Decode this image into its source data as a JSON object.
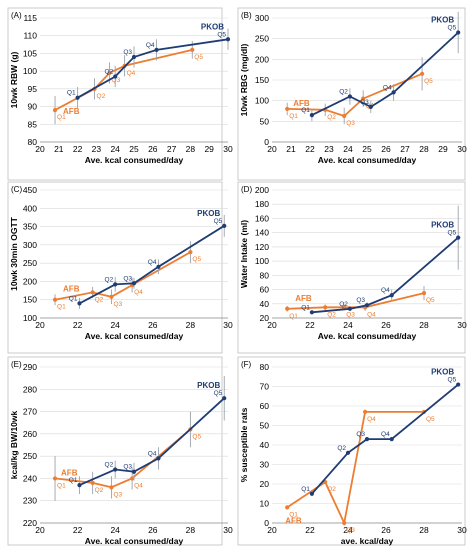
{
  "colors": {
    "pkob": "#1f3c73",
    "afb": "#ed7d31",
    "errorbar": "#9aa3ad",
    "grid": "#d9d9d9",
    "axis": "#000000"
  },
  "series_names": [
    "AFB",
    "PKOB"
  ],
  "chart_data": [
    {
      "panel": "(A)",
      "type": "line",
      "xlabel": "Ave. kcal consumed/day",
      "ylabel": "10wk RBW (g)",
      "xlim": [
        20,
        30
      ],
      "ylim": [
        80,
        115
      ],
      "xticks": [
        20,
        21,
        22,
        23,
        24,
        25,
        26,
        27,
        28,
        29,
        30
      ],
      "yticks": [
        80,
        85,
        90,
        95,
        100,
        105,
        110,
        115
      ],
      "series": [
        {
          "name": "AFB",
          "label_pos": "start-left",
          "points": [
            {
              "x": 20.8,
              "y": 89,
              "label": "Q1",
              "err": 4
            },
            {
              "x": 22.9,
              "y": 95,
              "label": "Q2",
              "err": 3
            },
            {
              "x": 23.7,
              "y": 99.5,
              "label": "Q3",
              "err": 3
            },
            {
              "x": 24.5,
              "y": 101.5,
              "label": "Q4",
              "err": 3
            },
            {
              "x": 28.1,
              "y": 106,
              "label": "Q5",
              "err": 2.5
            }
          ]
        },
        {
          "name": "PKOB",
          "label_pos": "end-left",
          "points": [
            {
              "x": 22.0,
              "y": 92.5,
              "label": "Q1",
              "err": 3
            },
            {
              "x": 24.0,
              "y": 98.5,
              "label": "Q2",
              "err": 3
            },
            {
              "x": 25.0,
              "y": 104,
              "label": "Q3",
              "err": 3
            },
            {
              "x": 26.2,
              "y": 106,
              "label": "Q4",
              "err": 3
            },
            {
              "x": 30.0,
              "y": 109,
              "label": "Q5",
              "err": 3
            }
          ]
        }
      ]
    },
    {
      "panel": "(B)",
      "type": "line",
      "xlabel": "Ave. kcal consumed/day",
      "ylabel": "10wk RBG (mg/dl)",
      "xlim": [
        20,
        30
      ],
      "ylim": [
        0,
        300
      ],
      "xticks": [
        20,
        21,
        22,
        23,
        24,
        25,
        26,
        27,
        28,
        29,
        30
      ],
      "yticks": [
        0,
        50,
        100,
        150,
        200,
        250,
        300
      ],
      "series": [
        {
          "name": "AFB",
          "label_pos": "start-right",
          "points": [
            {
              "x": 20.8,
              "y": 80,
              "label": "Q1",
              "err": 15
            },
            {
              "x": 22.8,
              "y": 78,
              "label": "Q2",
              "err": 15
            },
            {
              "x": 23.8,
              "y": 63,
              "label": "Q3",
              "err": 20
            },
            {
              "x": 24.8,
              "y": 105,
              "label": "Q4",
              "err": 20
            },
            {
              "x": 27.9,
              "y": 165,
              "label": "Q5",
              "err": 40
            }
          ]
        },
        {
          "name": "PKOB",
          "label_pos": "end-left",
          "points": [
            {
              "x": 22.1,
              "y": 65,
              "label": "Q1",
              "err": 15
            },
            {
              "x": 24.1,
              "y": 110,
              "label": "Q2",
              "err": 20
            },
            {
              "x": 25.2,
              "y": 85,
              "label": "Q3",
              "err": 15
            },
            {
              "x": 26.4,
              "y": 120,
              "label": "Q4",
              "err": 20
            },
            {
              "x": 29.8,
              "y": 265,
              "label": "Q5",
              "err": 50
            }
          ]
        }
      ]
    },
    {
      "panel": "(C)",
      "type": "line",
      "xlabel": "Ave. kcal consumed/day",
      "ylabel": "10wk 30min OGTT",
      "xlim": [
        20,
        30
      ],
      "ylim": [
        100,
        450
      ],
      "xticks": [
        20,
        22,
        24,
        26,
        28,
        30
      ],
      "yticks": [
        100,
        150,
        200,
        250,
        300,
        350,
        400,
        450
      ],
      "series": [
        {
          "name": "AFB",
          "label_pos": "start-above",
          "points": [
            {
              "x": 20.8,
              "y": 150,
              "label": "Q1",
              "err": 15
            },
            {
              "x": 22.8,
              "y": 170,
              "label": "Q2",
              "err": 15
            },
            {
              "x": 23.8,
              "y": 158,
              "label": "Q3",
              "err": 20
            },
            {
              "x": 24.9,
              "y": 190,
              "label": "Q4",
              "err": 20
            },
            {
              "x": 28.0,
              "y": 280,
              "label": "Q5",
              "err": 30
            }
          ]
        },
        {
          "name": "PKOB",
          "label_pos": "end-left",
          "points": [
            {
              "x": 22.1,
              "y": 140,
              "label": "Q1",
              "err": 15
            },
            {
              "x": 24.0,
              "y": 192,
              "label": "Q2",
              "err": 20
            },
            {
              "x": 25.0,
              "y": 195,
              "label": "Q3",
              "err": 15
            },
            {
              "x": 26.3,
              "y": 240,
              "label": "Q4",
              "err": 20
            },
            {
              "x": 29.8,
              "y": 352,
              "label": "Q5",
              "err": 30
            }
          ]
        }
      ]
    },
    {
      "panel": "(D)",
      "type": "line",
      "xlabel": "Ave. kcal consumed/day",
      "ylabel": "Water Intake (ml)",
      "xlim": [
        20,
        30
      ],
      "ylim": [
        20,
        200
      ],
      "xticks": [
        20,
        22,
        24,
        26,
        28,
        30
      ],
      "yticks": [
        20,
        40,
        60,
        80,
        100,
        120,
        140,
        160,
        180,
        200
      ],
      "series": [
        {
          "name": "AFB",
          "label_pos": "start-above",
          "points": [
            {
              "x": 20.8,
              "y": 33,
              "label": "Q1",
              "err": 4
            },
            {
              "x": 22.8,
              "y": 35,
              "label": "Q2",
              "err": 4
            },
            {
              "x": 23.8,
              "y": 35,
              "label": "Q3",
              "err": 4
            },
            {
              "x": 24.9,
              "y": 35,
              "label": "Q4",
              "err": 5
            },
            {
              "x": 28.0,
              "y": 55,
              "label": "Q5",
              "err": 10
            }
          ]
        },
        {
          "name": "PKOB",
          "label_pos": "end-left",
          "points": [
            {
              "x": 22.1,
              "y": 28,
              "label": "Q1",
              "err": 3
            },
            {
              "x": 24.1,
              "y": 33,
              "label": "Q2",
              "err": 3
            },
            {
              "x": 25.0,
              "y": 38,
              "label": "Q3",
              "err": 4
            },
            {
              "x": 26.3,
              "y": 52,
              "label": "Q4",
              "err": 8
            },
            {
              "x": 29.8,
              "y": 133,
              "label": "Q5",
              "err": 45
            }
          ]
        }
      ]
    },
    {
      "panel": "(E)",
      "type": "line",
      "xlabel": "Ave. kcal consumed/day",
      "ylabel": "kcal/kg BW/10wk",
      "xlim": [
        20,
        30
      ],
      "ylim": [
        220,
        290
      ],
      "xticks": [
        20,
        22,
        24,
        26,
        28,
        30
      ],
      "yticks": [
        220,
        230,
        240,
        250,
        260,
        270,
        280,
        290
      ],
      "series": [
        {
          "name": "AFB",
          "label_pos": "start-right",
          "points": [
            {
              "x": 20.8,
              "y": 240,
              "label": "Q1",
              "err": 10
            },
            {
              "x": 22.8,
              "y": 238,
              "label": "Q2",
              "err": 5
            },
            {
              "x": 23.8,
              "y": 236,
              "label": "Q3",
              "err": 5
            },
            {
              "x": 24.9,
              "y": 240,
              "label": "Q4",
              "err": 5
            },
            {
              "x": 28.0,
              "y": 262,
              "label": "Q5",
              "err": 8
            }
          ]
        },
        {
          "name": "PKOB",
          "label_pos": "end-left",
          "points": [
            {
              "x": 22.1,
              "y": 237,
              "label": "Q1",
              "err": 4
            },
            {
              "x": 24.0,
              "y": 244,
              "label": "Q2",
              "err": 4
            },
            {
              "x": 25.0,
              "y": 243,
              "label": "Q3",
              "err": 4
            },
            {
              "x": 26.3,
              "y": 249,
              "label": "Q4",
              "err": 5
            },
            {
              "x": 29.8,
              "y": 276,
              "label": "Q5",
              "err": 10
            }
          ]
        }
      ]
    },
    {
      "panel": "(F)",
      "type": "line",
      "xlabel": "ave. kcal/day",
      "ylabel": "% susceptible rats",
      "xlim": [
        20,
        30
      ],
      "ylim": [
        0,
        80
      ],
      "xticks": [
        20,
        22,
        24,
        26,
        28,
        30
      ],
      "yticks": [
        0,
        10,
        20,
        30,
        40,
        50,
        60,
        70,
        80
      ],
      "series": [
        {
          "name": "AFB",
          "label_pos": "start-below",
          "points": [
            {
              "x": 20.8,
              "y": 8,
              "label": "Q1"
            },
            {
              "x": 22.8,
              "y": 21,
              "label": "Q2"
            },
            {
              "x": 23.8,
              "y": 0,
              "label": "Q3"
            },
            {
              "x": 24.9,
              "y": 57,
              "label": "Q4"
            },
            {
              "x": 28.0,
              "y": 57,
              "label": "Q5"
            }
          ]
        },
        {
          "name": "PKOB",
          "label_pos": "end-left",
          "points": [
            {
              "x": 22.1,
              "y": 15,
              "label": "Q1"
            },
            {
              "x": 24.0,
              "y": 36,
              "label": "Q2"
            },
            {
              "x": 25.0,
              "y": 43,
              "label": "Q3"
            },
            {
              "x": 26.3,
              "y": 43,
              "label": "Q4"
            },
            {
              "x": 29.8,
              "y": 71,
              "label": "Q5"
            }
          ]
        }
      ]
    }
  ]
}
